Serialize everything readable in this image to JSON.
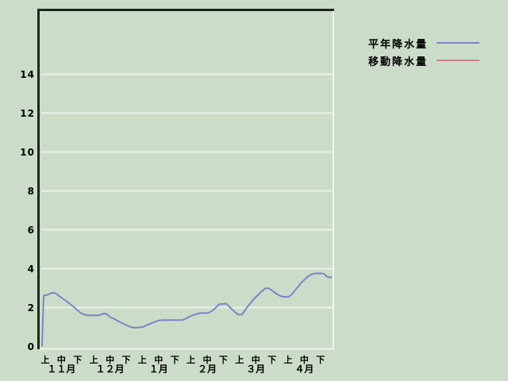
{
  "page": {
    "background_color": "#cbddc8",
    "plot_background_color": "#cbddc8",
    "gridline_color": "#e9f2e6",
    "frame_dark_color": "#1b291b",
    "frame_light_color": "#edf5ec"
  },
  "chart_data": {
    "type": "line",
    "title": "",
    "xlabel": "",
    "ylabel": "",
    "grid": "horizontal-only",
    "legend_position": "top-right-outside",
    "x_axis": {
      "months": [
        "１１月",
        "１２月",
        "１月",
        "２月",
        "３月",
        "４月"
      ],
      "period_labels_per_month": [
        "上",
        "中",
        "下"
      ],
      "tick_labels": [
        "上",
        "中",
        "下",
        "上",
        "中",
        "下",
        "上",
        "中",
        "下",
        "上",
        "中",
        "下",
        "上",
        "中",
        "下",
        "上",
        "中",
        "下"
      ]
    },
    "y_axis": {
      "ticks": [
        0,
        2,
        4,
        6,
        8,
        10,
        12,
        14
      ],
      "min": 0,
      "max_visible": 17.4
    },
    "series": [
      {
        "name": "平年降水量",
        "color": "#7b85c9",
        "points": [
          [
            -0.2,
            0.0
          ],
          [
            -0.1,
            2.62
          ],
          [
            0.0,
            2.62
          ],
          [
            0.25,
            2.7
          ],
          [
            0.39,
            2.76
          ],
          [
            0.64,
            2.74
          ],
          [
            0.78,
            2.65
          ],
          [
            0.98,
            2.52
          ],
          [
            1.23,
            2.38
          ],
          [
            1.47,
            2.22
          ],
          [
            1.72,
            2.06
          ],
          [
            1.96,
            1.88
          ],
          [
            2.21,
            1.71
          ],
          [
            2.45,
            1.63
          ],
          [
            2.6,
            1.6
          ],
          [
            3.33,
            1.6
          ],
          [
            3.48,
            1.66
          ],
          [
            3.68,
            1.7
          ],
          [
            3.87,
            1.62
          ],
          [
            4.02,
            1.5
          ],
          [
            4.26,
            1.42
          ],
          [
            4.56,
            1.28
          ],
          [
            4.8,
            1.18
          ],
          [
            5.05,
            1.08
          ],
          [
            5.29,
            1.0
          ],
          [
            5.54,
            0.96
          ],
          [
            5.78,
            0.98
          ],
          [
            6.03,
            1.0
          ],
          [
            6.27,
            1.1
          ],
          [
            6.52,
            1.18
          ],
          [
            6.76,
            1.26
          ],
          [
            7.01,
            1.34
          ],
          [
            7.25,
            1.36
          ],
          [
            8.48,
            1.36
          ],
          [
            8.73,
            1.45
          ],
          [
            8.97,
            1.56
          ],
          [
            9.22,
            1.64
          ],
          [
            9.46,
            1.7
          ],
          [
            9.71,
            1.72
          ],
          [
            10.05,
            1.72
          ],
          [
            10.34,
            1.85
          ],
          [
            10.54,
            2.0
          ],
          [
            10.74,
            2.17
          ],
          [
            11.18,
            2.2
          ],
          [
            11.42,
            2.0
          ],
          [
            11.67,
            1.8
          ],
          [
            11.91,
            1.64
          ],
          [
            12.16,
            1.64
          ],
          [
            12.4,
            1.95
          ],
          [
            12.65,
            2.2
          ],
          [
            12.89,
            2.45
          ],
          [
            13.14,
            2.65
          ],
          [
            13.38,
            2.85
          ],
          [
            13.58,
            2.98
          ],
          [
            13.77,
            3.0
          ],
          [
            13.97,
            2.9
          ],
          [
            14.26,
            2.72
          ],
          [
            14.46,
            2.62
          ],
          [
            14.66,
            2.56
          ],
          [
            14.85,
            2.55
          ],
          [
            15.05,
            2.56
          ],
          [
            15.25,
            2.7
          ],
          [
            15.44,
            2.9
          ],
          [
            15.64,
            3.1
          ],
          [
            15.83,
            3.3
          ],
          [
            16.03,
            3.45
          ],
          [
            16.23,
            3.6
          ],
          [
            16.42,
            3.7
          ],
          [
            16.62,
            3.75
          ],
          [
            17.01,
            3.76
          ],
          [
            17.21,
            3.74
          ],
          [
            17.35,
            3.62
          ],
          [
            17.5,
            3.56
          ],
          [
            17.7,
            3.55
          ]
        ]
      },
      {
        "name": "移動降水量",
        "color": "#cc8383",
        "points": []
      }
    ]
  }
}
